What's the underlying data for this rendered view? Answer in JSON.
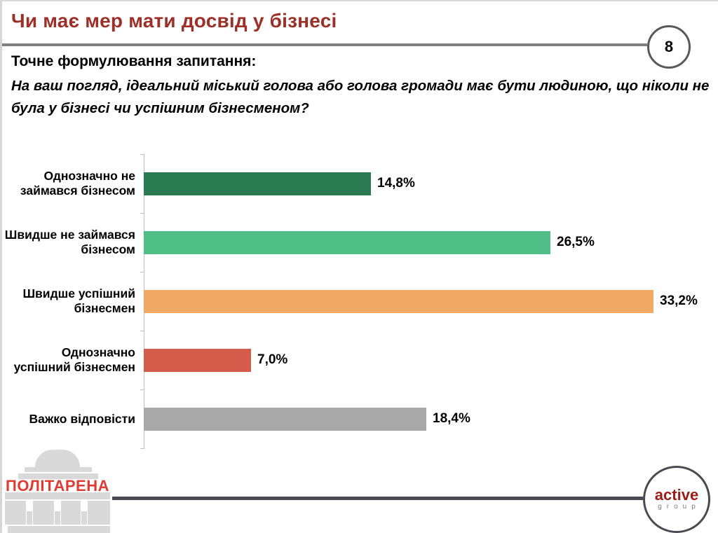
{
  "slide": {
    "title": "Чи має мер мати досвід у бізнесі",
    "page_number": "8",
    "question_label": "Точне формулювання запитання:",
    "question_text": "На ваш погляд, ідеальний міський голова або голова громади має бути людиною, що ніколи не була у бізнесі чи успішним бізнесменом?"
  },
  "chart_data": {
    "type": "bar",
    "orientation": "horizontal",
    "title": "Чи має мер мати досвід у бізнесі",
    "categories": [
      "Однозначно не займався бізнесом",
      "Швидше не займався бізнесом",
      "Швидше успішний бізнесмен",
      "Однозначно успішний бізнесмен",
      "Важко відповісти"
    ],
    "values": [
      14.8,
      26.5,
      33.2,
      7.0,
      18.4
    ],
    "value_labels": [
      "14,8%",
      "26,5%",
      "33,2%",
      "7,0%",
      "18,4%"
    ],
    "bar_colors": [
      "#2A7B52",
      "#4FBE87",
      "#F2A966",
      "#D45C4B",
      "#A9A9A9"
    ],
    "xlim": [
      0,
      35
    ],
    "grid": false,
    "legend": false,
    "data_labels": "outside-end"
  },
  "footer": {
    "left_logo_text": "ПОЛІТАРЕНА",
    "right_logo_line1": "active",
    "right_logo_line2": "group"
  },
  "colors": {
    "title": "#9C2F27",
    "header_line": "#7F7F7F",
    "footer_line": "#4A4A52",
    "circle_stroke": "#595959",
    "politarena_red": "#DF3B32",
    "active_red": "#9B1D17",
    "logo_gray": "#D9D9D9"
  }
}
